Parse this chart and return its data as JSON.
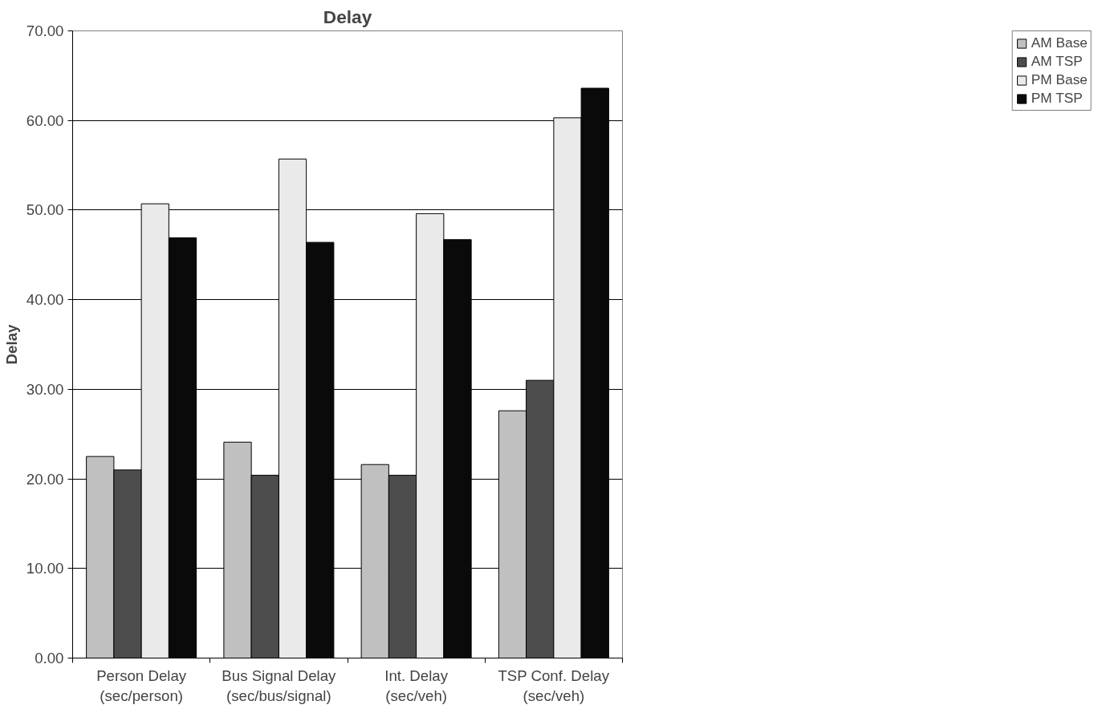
{
  "chart_data": {
    "type": "bar",
    "title": "Delay",
    "ylabel": "Delay",
    "categories": [
      "Person Delay\n(sec/person)",
      "Bus Signal Delay\n(sec/bus/signal)",
      "Int. Delay\n(sec/veh)",
      "TSP Conf. Delay\n(sec/veh)"
    ],
    "series": [
      {
        "name": "AM Base",
        "color": "#c0c0c0",
        "values": [
          22.5,
          24.1,
          21.6,
          27.6
        ]
      },
      {
        "name": "AM TSP",
        "color": "#4d4d4d",
        "values": [
          21.0,
          20.4,
          20.4,
          31.0
        ]
      },
      {
        "name": "PM Base",
        "color": "#eaeaea",
        "values": [
          50.7,
          55.7,
          49.6,
          60.3
        ]
      },
      {
        "name": "PM TSP",
        "color": "#0a0a0a",
        "values": [
          46.9,
          46.4,
          46.7,
          63.6
        ]
      }
    ],
    "ylim": [
      0,
      70
    ],
    "yticks": [
      {
        "value": 0,
        "label": "0.00"
      },
      {
        "value": 10,
        "label": "10.00"
      },
      {
        "value": 20,
        "label": "20.00"
      },
      {
        "value": 30,
        "label": "30.00"
      },
      {
        "value": 40,
        "label": "40.00"
      },
      {
        "value": 50,
        "label": "50.00"
      },
      {
        "value": 60,
        "label": "60.00"
      },
      {
        "value": 70,
        "label": "70.00"
      }
    ],
    "grid": "y",
    "legend": "right"
  }
}
